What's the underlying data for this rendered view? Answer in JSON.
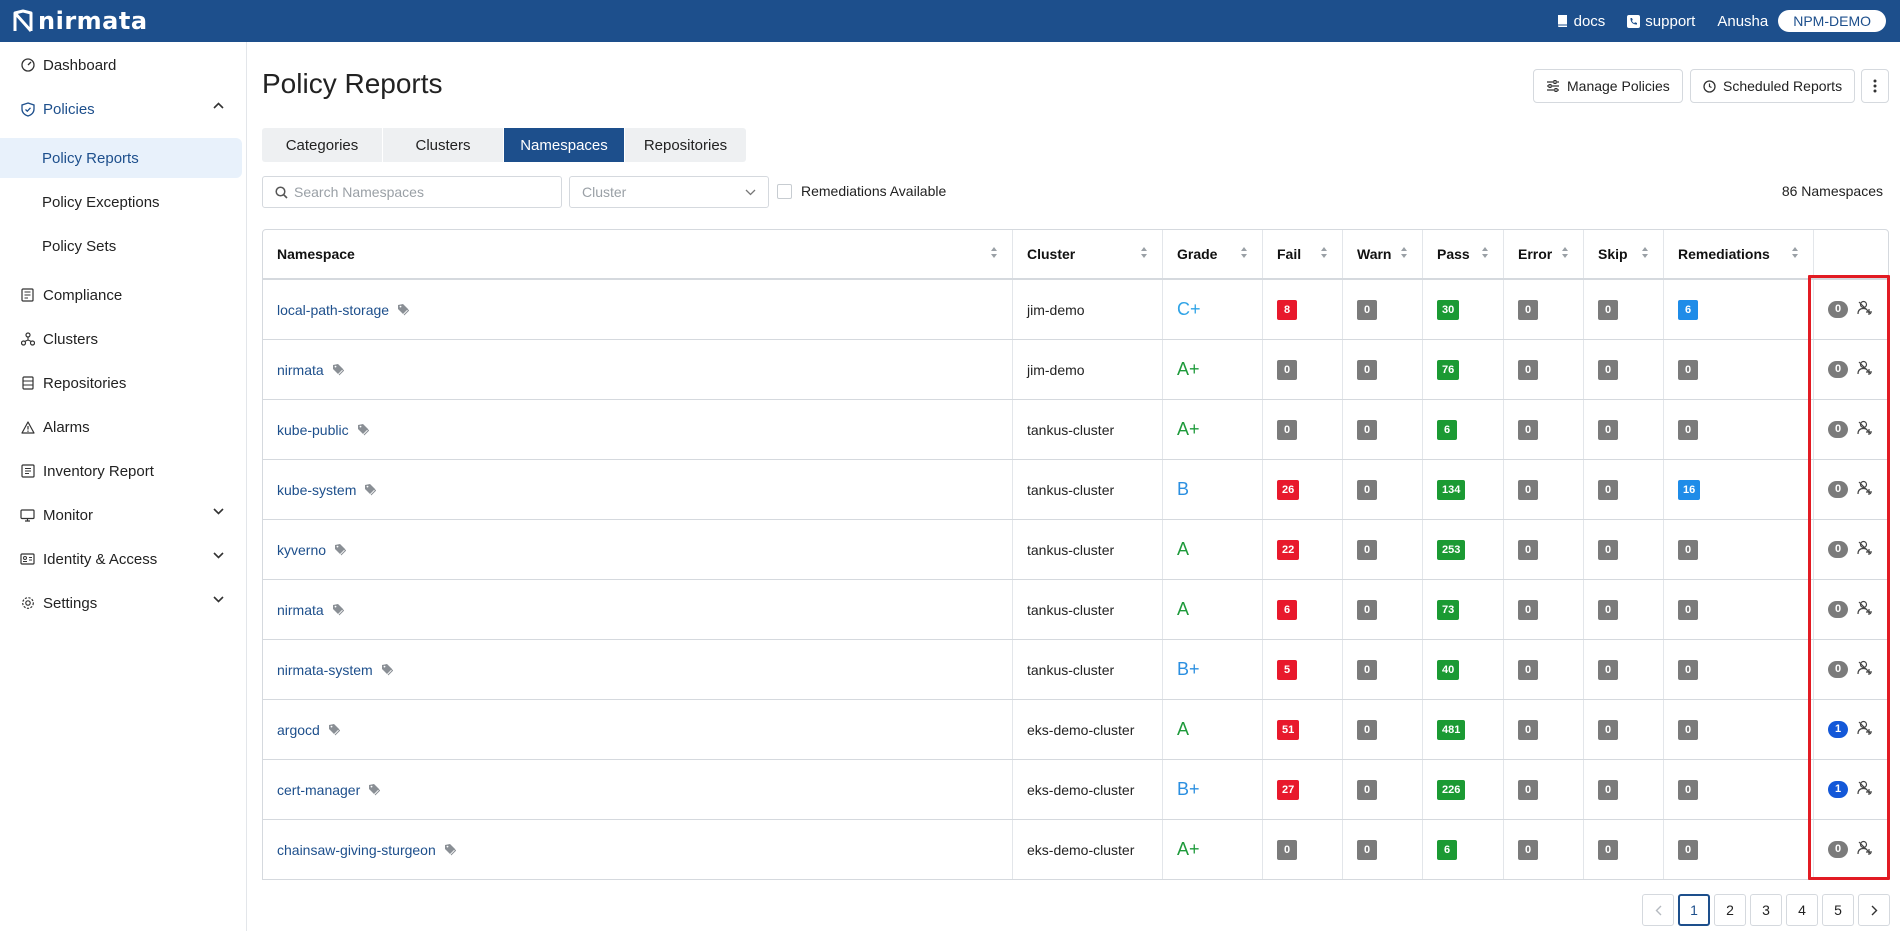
{
  "topbar": {
    "brand": "nirmata",
    "docs_label": "docs",
    "support_label": "support",
    "user_name": "Anusha",
    "org_name": "NPM-DEMO"
  },
  "sidebar": {
    "items": [
      {
        "label": "Dashboard",
        "icon": "dashboard-icon"
      },
      {
        "label": "Policies",
        "icon": "shield-check-icon",
        "expanded": true
      },
      {
        "label": "Compliance",
        "icon": "compliance-icon"
      },
      {
        "label": "Clusters",
        "icon": "clusters-icon"
      },
      {
        "label": "Repositories",
        "icon": "repositories-icon"
      },
      {
        "label": "Alarms",
        "icon": "warning-triangle-icon"
      },
      {
        "label": "Inventory Report",
        "icon": "inventory-icon"
      },
      {
        "label": "Monitor",
        "icon": "monitor-icon"
      },
      {
        "label": "Identity & Access",
        "icon": "id-card-icon"
      },
      {
        "label": "Settings",
        "icon": "gear-icon"
      }
    ],
    "policies_sub": [
      "Policy Reports",
      "Policy Exceptions",
      "Policy Sets"
    ],
    "selected_sub": "Policy Reports"
  },
  "page": {
    "title": "Policy Reports",
    "manage_policies": "Manage Policies",
    "scheduled_reports": "Scheduled Reports",
    "tabs": [
      "Categories",
      "Clusters",
      "Namespaces",
      "Repositories"
    ],
    "active_tab": "Namespaces",
    "search_placeholder": "Search Namespaces",
    "cluster_placeholder": "Cluster",
    "remediations_filter": "Remediations Available",
    "count_text": "86 Namespaces"
  },
  "table": {
    "headers": [
      "Namespace",
      "Cluster",
      "Grade",
      "Fail",
      "Warn",
      "Pass",
      "Error",
      "Skip",
      "Remediations"
    ],
    "rows": [
      {
        "namespace": "local-path-storage",
        "cluster": "jim-demo",
        "grade": "C+",
        "fail": "8",
        "warn": "0",
        "pass": "30",
        "error": "0",
        "skip": "0",
        "remediations": "6",
        "exceptions": "0"
      },
      {
        "namespace": "nirmata",
        "cluster": "jim-demo",
        "grade": "A+",
        "fail": "0",
        "warn": "0",
        "pass": "76",
        "error": "0",
        "skip": "0",
        "remediations": "0",
        "exceptions": "0"
      },
      {
        "namespace": "kube-public",
        "cluster": "tankus-cluster",
        "grade": "A+",
        "fail": "0",
        "warn": "0",
        "pass": "6",
        "error": "0",
        "skip": "0",
        "remediations": "0",
        "exceptions": "0"
      },
      {
        "namespace": "kube-system",
        "cluster": "tankus-cluster",
        "grade": "B",
        "fail": "26",
        "warn": "0",
        "pass": "134",
        "error": "0",
        "skip": "0",
        "remediations": "16",
        "exceptions": "0"
      },
      {
        "namespace": "kyverno",
        "cluster": "tankus-cluster",
        "grade": "A",
        "fail": "22",
        "warn": "0",
        "pass": "253",
        "error": "0",
        "skip": "0",
        "remediations": "0",
        "exceptions": "0"
      },
      {
        "namespace": "nirmata",
        "cluster": "tankus-cluster",
        "grade": "A",
        "fail": "6",
        "warn": "0",
        "pass": "73",
        "error": "0",
        "skip": "0",
        "remediations": "0",
        "exceptions": "0"
      },
      {
        "namespace": "nirmata-system",
        "cluster": "tankus-cluster",
        "grade": "B+",
        "fail": "5",
        "warn": "0",
        "pass": "40",
        "error": "0",
        "skip": "0",
        "remediations": "0",
        "exceptions": "0"
      },
      {
        "namespace": "argocd",
        "cluster": "eks-demo-cluster",
        "grade": "A",
        "fail": "51",
        "warn": "0",
        "pass": "481",
        "error": "0",
        "skip": "0",
        "remediations": "0",
        "exceptions": "1"
      },
      {
        "namespace": "cert-manager",
        "cluster": "eks-demo-cluster",
        "grade": "B+",
        "fail": "27",
        "warn": "0",
        "pass": "226",
        "error": "0",
        "skip": "0",
        "remediations": "0",
        "exceptions": "1"
      },
      {
        "namespace": "chainsaw-giving-sturgeon",
        "cluster": "eks-demo-cluster",
        "grade": "A+",
        "fail": "0",
        "warn": "0",
        "pass": "6",
        "error": "0",
        "skip": "0",
        "remediations": "0",
        "exceptions": "0"
      }
    ]
  },
  "pagination": {
    "pages": [
      "1",
      "2",
      "3",
      "4",
      "5"
    ],
    "current": "1"
  },
  "colors": {
    "brand": "#1d4f8c",
    "fail": "#e8192c",
    "pass": "#1b9a33",
    "neutral": "#7b7b7b",
    "remediation": "#1f8ce8",
    "highlight_box": "#e21b23"
  }
}
